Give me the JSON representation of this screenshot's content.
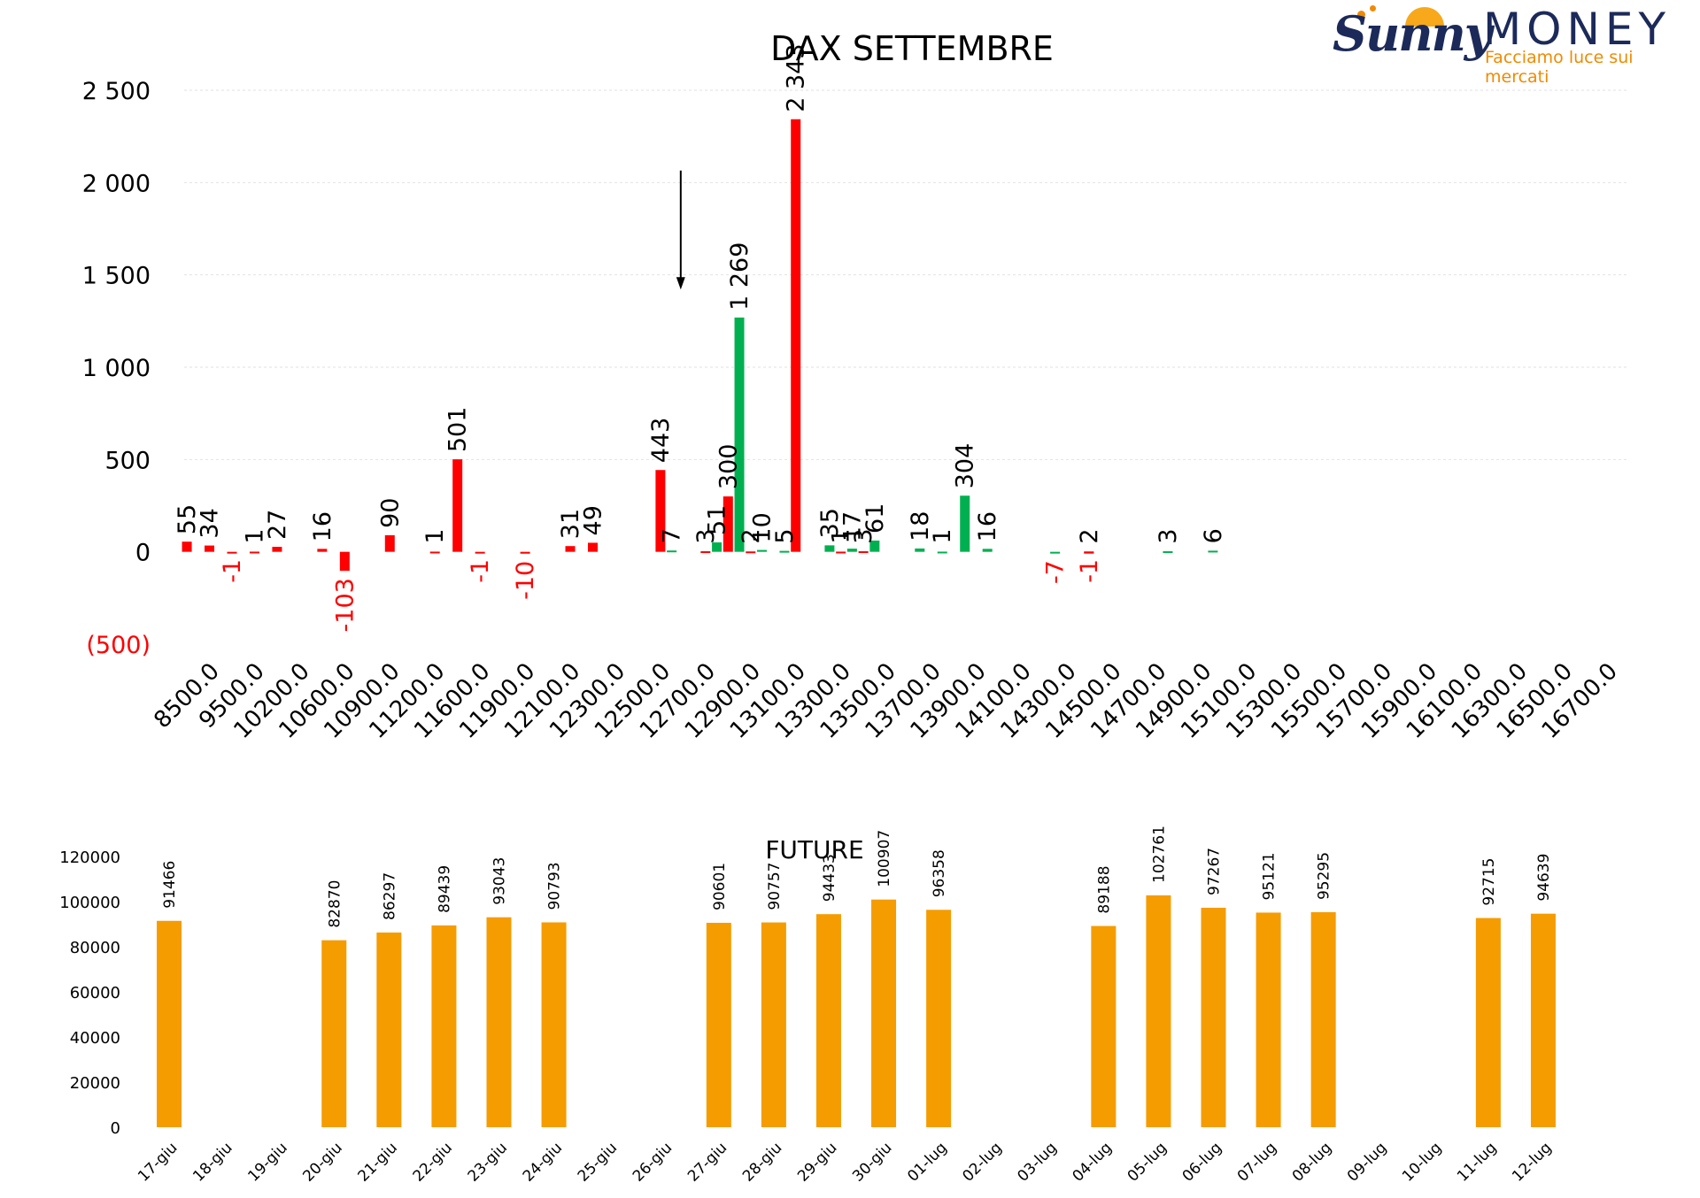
{
  "logo": {
    "brand_left": "Sunny",
    "brand_right": "MONEY",
    "tagline": "Facciamo luce sui mercati"
  },
  "colors": {
    "positive": "#00b050",
    "negative": "#ff0000",
    "future": "#f59c00",
    "axis_text": "#000000",
    "negative_text": "#ff0000"
  },
  "chart_data": [
    {
      "type": "bar",
      "title": "DAX SETTEMBRE",
      "ylim": [
        -500,
        2500
      ],
      "yticks": [
        {
          "value": 2500,
          "label": "2 500"
        },
        {
          "value": 2000,
          "label": "2 000"
        },
        {
          "value": 1500,
          "label": "1 500"
        },
        {
          "value": 1000,
          "label": "1 000"
        },
        {
          "value": 500,
          "label": "500"
        },
        {
          "value": 0,
          "label": "0"
        },
        {
          "value": -500,
          "label": "(500)"
        }
      ],
      "grid": true,
      "categories": [
        "8500.0",
        "9500.0",
        "10200.0",
        "10600.0",
        "10900.0",
        "11200.0",
        "11600.0",
        "11900.0",
        "12100.0",
        "12300.0",
        "12500.0",
        "12700.0",
        "12900.0",
        "13100.0",
        "13300.0",
        "13500.0",
        "13700.0",
        "13900.0",
        "14100.0",
        "14300.0",
        "14500.0",
        "14700.0",
        "14900.0",
        "15100.0",
        "15300.0",
        "15500.0",
        "15700.0",
        "15900.0",
        "16100.0",
        "16300.0",
        "16500.0",
        "16700.0"
      ],
      "bars": [
        {
          "x": 0.06,
          "value": 55,
          "label": "55",
          "color": "red"
        },
        {
          "x": 0.56,
          "value": 34,
          "label": "34",
          "color": "red"
        },
        {
          "x": 1.06,
          "value": -1,
          "label": "-1",
          "color": "red"
        },
        {
          "x": 1.56,
          "value": 1,
          "label": "1",
          "color": "red"
        },
        {
          "x": 2.06,
          "value": 27,
          "label": "27",
          "color": "red"
        },
        {
          "x": 3.06,
          "value": 16,
          "label": "16",
          "color": "red"
        },
        {
          "x": 3.56,
          "value": -103,
          "label": "-103",
          "color": "red"
        },
        {
          "x": 4.56,
          "value": 90,
          "label": "90",
          "color": "red"
        },
        {
          "x": 5.56,
          "value": 1,
          "label": "1",
          "color": "red"
        },
        {
          "x": 6.06,
          "value": 501,
          "label": "501",
          "color": "red"
        },
        {
          "x": 6.56,
          "value": -1,
          "label": "-1",
          "color": "red"
        },
        {
          "x": 7.56,
          "value": -10,
          "label": "-10",
          "color": "red"
        },
        {
          "x": 8.56,
          "value": 31,
          "label": "31",
          "color": "red"
        },
        {
          "x": 9.06,
          "value": 49,
          "label": "49",
          "color": "red"
        },
        {
          "x": 10.56,
          "value": 443,
          "label": "443",
          "color": "red"
        },
        {
          "x": 10.81,
          "value": 7,
          "label": "7",
          "color": "green"
        },
        {
          "x": 11.56,
          "value": 3,
          "label": "3",
          "color": "red"
        },
        {
          "x": 11.81,
          "value": 51,
          "label": "51",
          "color": "green"
        },
        {
          "x": 12.06,
          "value": 300,
          "label": "300",
          "color": "red"
        },
        {
          "x": 12.31,
          "value": 1269,
          "label": "1 269",
          "color": "green"
        },
        {
          "x": 12.56,
          "value": 2,
          "label": "2",
          "color": "red"
        },
        {
          "x": 12.81,
          "value": 10,
          "label": "10",
          "color": "green"
        },
        {
          "x": 13.31,
          "value": 5,
          "label": "5",
          "color": "green"
        },
        {
          "x": 13.56,
          "value": 2343,
          "label": "2 343",
          "color": "red"
        },
        {
          "x": 14.31,
          "value": 35,
          "label": "35",
          "color": "green"
        },
        {
          "x": 14.56,
          "value": 1,
          "label": "1",
          "color": "red"
        },
        {
          "x": 14.81,
          "value": 17,
          "label": "17",
          "color": "green"
        },
        {
          "x": 15.06,
          "value": 3,
          "label": "3",
          "color": "red"
        },
        {
          "x": 15.31,
          "value": 61,
          "label": "61",
          "color": "green"
        },
        {
          "x": 16.31,
          "value": 18,
          "label": "18",
          "color": "green"
        },
        {
          "x": 16.81,
          "value": 1,
          "label": "1",
          "color": "green"
        },
        {
          "x": 17.31,
          "value": 304,
          "label": "304",
          "color": "green"
        },
        {
          "x": 17.81,
          "value": 16,
          "label": "16",
          "color": "green"
        },
        {
          "x": 19.31,
          "value": -7,
          "label": "-7",
          "color": "green"
        },
        {
          "x": 20.06,
          "value": 2,
          "label": "2",
          "color": "red"
        },
        {
          "x": 20.06,
          "value": -1,
          "label": "-1",
          "color": "red"
        },
        {
          "x": 21.81,
          "value": 3,
          "label": "3",
          "color": "green"
        },
        {
          "x": 22.81,
          "value": 6,
          "label": "6",
          "color": "green"
        }
      ],
      "annotations": [
        {
          "type": "arrow",
          "x": 11.01,
          "from": 2065,
          "to": 1430
        }
      ]
    },
    {
      "type": "bar",
      "title": "FUTURE",
      "ylim": [
        0,
        120000
      ],
      "yticks": [
        0,
        20000,
        40000,
        60000,
        80000,
        100000,
        120000
      ],
      "categories": [
        "17-giu",
        "18-giu",
        "19-giu",
        "20-giu",
        "21-giu",
        "22-giu",
        "23-giu",
        "24-giu",
        "25-giu",
        "26-giu",
        "27-giu",
        "28-giu",
        "29-giu",
        "30-giu",
        "01-lug",
        "02-lug",
        "03-lug",
        "04-lug",
        "05-lug",
        "06-lug",
        "07-lug",
        "08-lug",
        "09-lug",
        "10-lug",
        "11-lug",
        "12-lug"
      ],
      "values": [
        91466,
        null,
        null,
        82870,
        86297,
        89439,
        93043,
        90793,
        null,
        null,
        90601,
        90757,
        94433,
        100907,
        96358,
        null,
        null,
        89188,
        102761,
        97267,
        95121,
        95295,
        null,
        null,
        92715,
        94639
      ],
      "labels": [
        "91466",
        "",
        "",
        "82870",
        "86297",
        "89439",
        "93043",
        "90793",
        "",
        "",
        "90601",
        "90757",
        "94433",
        "100907",
        "96358",
        "",
        "",
        "89188",
        "102761",
        "97267",
        "95121",
        "95295",
        "",
        "",
        "92715",
        "94639"
      ]
    }
  ]
}
